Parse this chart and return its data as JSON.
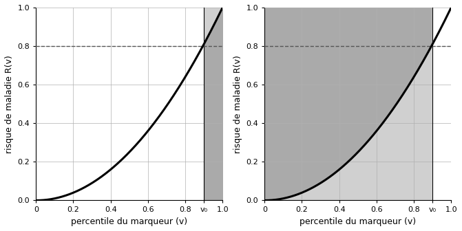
{
  "v0": 0.9,
  "threshold": 0.8,
  "xlim": [
    0,
    1.0
  ],
  "ylim": [
    0,
    1.0
  ],
  "xlabel": "percentile du marqueur (v)",
  "ylabel": "risque de maladie R(v)",
  "v0_label": "v₀",
  "dark_gray": "#aaaaaa",
  "light_gray": "#d0d0d0",
  "curve_color": "#000000",
  "curve_lw": 2.2,
  "dashed_color": "#555555",
  "grid_color": "#b0b0b0",
  "figsize": [
    6.71,
    3.36
  ],
  "dpi": 100
}
